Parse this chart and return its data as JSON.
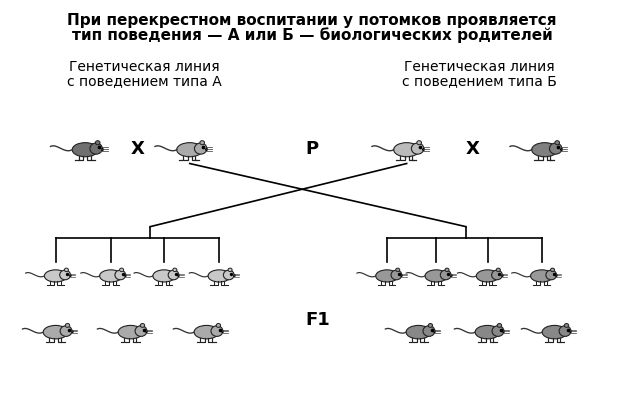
{
  "title_line1": "При перекрестном воспитании у потомков проявляется",
  "title_line2": "тип поведения — А или Б — биологических родителей",
  "label_left_line1": "Генетическая линия",
  "label_left_line2": "с поведением типа А",
  "label_right_line1": "Генетическая линия",
  "label_right_line2": "с поведением типа Б",
  "cross_symbol": "Х",
  "parent_symbol": "Р",
  "f1_symbol": "F1",
  "bg_color": "#ffffff",
  "text_color": "#000000",
  "line_color": "#000000",
  "title_fontsize": 11,
  "label_fontsize": 10,
  "symbol_fontsize": 13
}
